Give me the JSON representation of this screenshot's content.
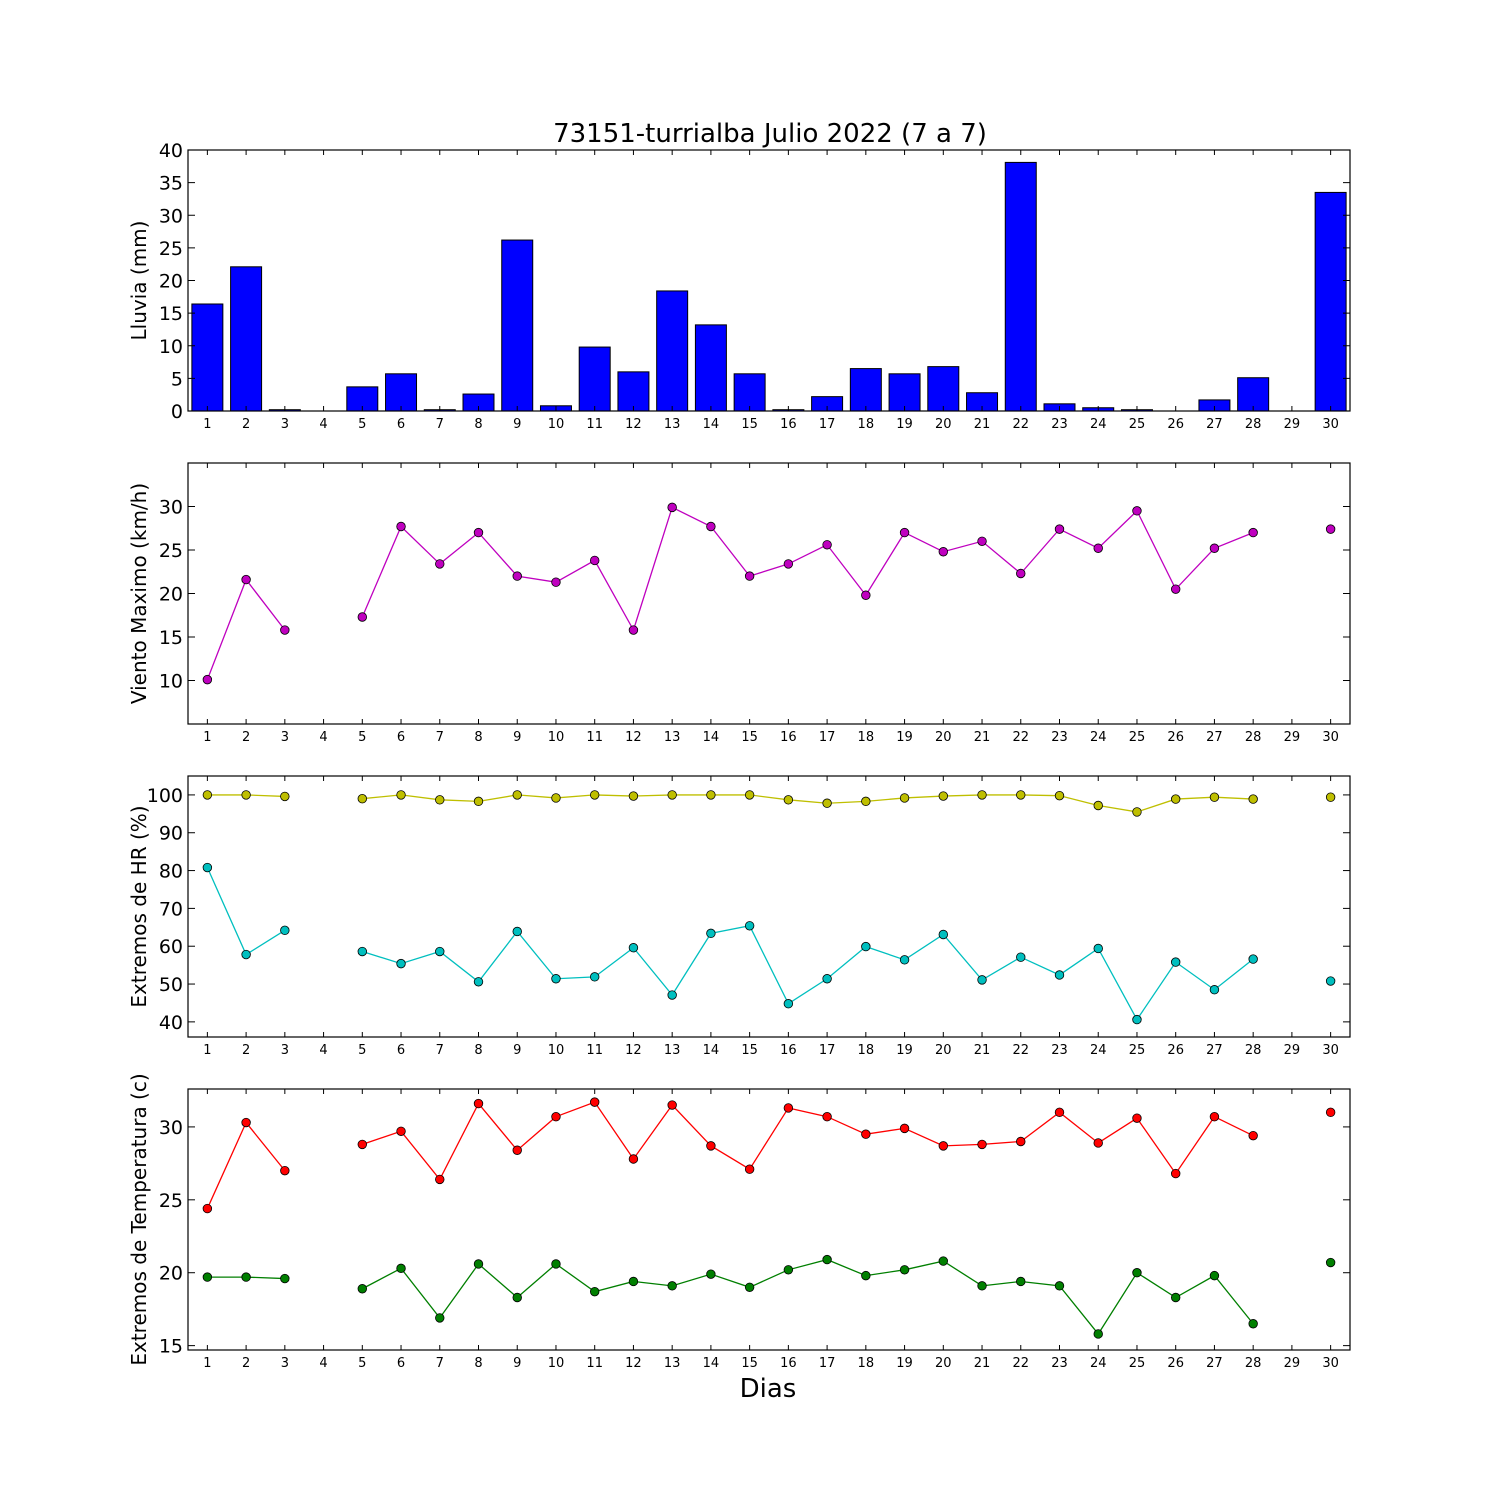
{
  "figure": {
    "title": "73151-turrialba Julio 2022  (7 a 7)",
    "xlabel": "Dias"
  },
  "chart_data": [
    {
      "type": "bar",
      "ylabel": "Lluvia (mm)",
      "ylim": [
        0,
        40
      ],
      "yticks": [
        0,
        5,
        10,
        15,
        20,
        25,
        30,
        35,
        40
      ],
      "xlim": [
        0.5,
        30.5
      ],
      "x": [
        1,
        2,
        3,
        4,
        5,
        6,
        7,
        8,
        9,
        10,
        11,
        12,
        13,
        14,
        15,
        16,
        17,
        18,
        19,
        20,
        21,
        22,
        23,
        24,
        25,
        26,
        27,
        28,
        29,
        30
      ],
      "xticklabels": [
        "1",
        "2",
        "3",
        "4",
        "5",
        "6",
        "7",
        "8",
        "9",
        "10",
        "11",
        "12",
        "13",
        "14",
        "15",
        "16",
        "17",
        "18",
        "19",
        "20",
        "21",
        "22",
        "23",
        "24",
        "25",
        "26",
        "27",
        "28",
        "29",
        "30"
      ],
      "grid": false,
      "series": [
        {
          "color": "#0000ff",
          "values": [
            16.4,
            22.1,
            0.2,
            0,
            3.7,
            5.7,
            0.2,
            2.6,
            26.2,
            0.8,
            9.8,
            6.0,
            18.4,
            13.2,
            5.7,
            0.2,
            2.2,
            6.5,
            5.7,
            6.8,
            2.8,
            38.1,
            1.1,
            0.5,
            0.2,
            0,
            1.7,
            5.1,
            0,
            33.5
          ]
        }
      ]
    },
    {
      "type": "line",
      "ylabel": "Viento Maximo (km/h)",
      "ylim": [
        5,
        35
      ],
      "yticks": [
        10,
        15,
        20,
        25,
        30
      ],
      "xlim": [
        0.5,
        30.5
      ],
      "x": [
        1,
        2,
        3,
        4,
        5,
        6,
        7,
        8,
        9,
        10,
        11,
        12,
        13,
        14,
        15,
        16,
        17,
        18,
        19,
        20,
        21,
        22,
        23,
        24,
        25,
        26,
        27,
        28,
        29,
        30
      ],
      "xticklabels": [
        "1",
        "2",
        "3",
        "4",
        "5",
        "6",
        "7",
        "8",
        "9",
        "10",
        "11",
        "12",
        "13",
        "14",
        "15",
        "16",
        "17",
        "18",
        "19",
        "20",
        "21",
        "22",
        "23",
        "24",
        "25",
        "26",
        "27",
        "28",
        "29",
        "30"
      ],
      "grid": false,
      "series": [
        {
          "color": "#bf00bf",
          "values": [
            10.1,
            21.6,
            15.8,
            null,
            17.3,
            27.7,
            23.4,
            27.0,
            22.0,
            21.3,
            23.8,
            15.8,
            29.9,
            27.7,
            22.0,
            23.4,
            25.6,
            19.8,
            27.0,
            24.8,
            26.0,
            22.3,
            27.4,
            25.2,
            29.5,
            20.5,
            25.2,
            27.0,
            null,
            27.4
          ]
        }
      ]
    },
    {
      "type": "line",
      "ylabel": "Extremos de HR (%)",
      "ylim": [
        36,
        105
      ],
      "yticks": [
        40,
        50,
        60,
        70,
        80,
        90,
        100
      ],
      "xlim": [
        0.5,
        30.5
      ],
      "x": [
        1,
        2,
        3,
        4,
        5,
        6,
        7,
        8,
        9,
        10,
        11,
        12,
        13,
        14,
        15,
        16,
        17,
        18,
        19,
        20,
        21,
        22,
        23,
        24,
        25,
        26,
        27,
        28,
        29,
        30
      ],
      "xticklabels": [
        "1",
        "2",
        "3",
        "4",
        "5",
        "6",
        "7",
        "8",
        "9",
        "10",
        "11",
        "12",
        "13",
        "14",
        "15",
        "16",
        "17",
        "18",
        "19",
        "20",
        "21",
        "22",
        "23",
        "24",
        "25",
        "26",
        "27",
        "28",
        "29",
        "30"
      ],
      "grid": false,
      "series": [
        {
          "color": "#bfbf00",
          "values": [
            100,
            100,
            99.6,
            null,
            99.0,
            100,
            98.7,
            98.3,
            100,
            99.2,
            100,
            99.7,
            100,
            100,
            100,
            98.7,
            97.8,
            98.3,
            99.2,
            99.7,
            100,
            100,
            99.8,
            97.2,
            95.5,
            98.9,
            99.4,
            98.9,
            null,
            99.4
          ]
        },
        {
          "color": "#00bfbf",
          "values": [
            80.8,
            57.8,
            64.2,
            null,
            58.6,
            55.4,
            58.6,
            50.6,
            63.9,
            51.4,
            51.9,
            59.6,
            47.1,
            63.4,
            65.4,
            44.8,
            51.4,
            59.9,
            56.4,
            63.1,
            51.1,
            57.1,
            52.4,
            59.4,
            40.6,
            55.8,
            48.5,
            56.6,
            null,
            50.8
          ]
        }
      ]
    },
    {
      "type": "line",
      "ylabel": "Extremos de Temperatura (c)",
      "ylim": [
        14.7,
        32.6
      ],
      "yticks": [
        15,
        20,
        25,
        30
      ],
      "xlim": [
        0.5,
        30.5
      ],
      "x": [
        1,
        2,
        3,
        4,
        5,
        6,
        7,
        8,
        9,
        10,
        11,
        12,
        13,
        14,
        15,
        16,
        17,
        18,
        19,
        20,
        21,
        22,
        23,
        24,
        25,
        26,
        27,
        28,
        29,
        30
      ],
      "xticklabels": [
        "1",
        "2",
        "3",
        "4",
        "5",
        "6",
        "7",
        "8",
        "9",
        "10",
        "11",
        "12",
        "13",
        "14",
        "15",
        "16",
        "17",
        "18",
        "19",
        "20",
        "21",
        "22",
        "23",
        "24",
        "25",
        "26",
        "27",
        "28",
        "29",
        "30"
      ],
      "grid": false,
      "series": [
        {
          "color": "#ff0000",
          "values": [
            24.4,
            30.3,
            27.0,
            null,
            28.8,
            29.7,
            26.4,
            31.6,
            28.4,
            30.7,
            31.7,
            27.8,
            31.5,
            28.7,
            27.1,
            31.3,
            30.7,
            29.5,
            29.9,
            28.7,
            28.8,
            29.0,
            31.0,
            28.9,
            30.6,
            26.8,
            30.7,
            29.4,
            null,
            31.0
          ]
        },
        {
          "color": "#007f00",
          "values": [
            19.7,
            19.7,
            19.6,
            null,
            18.9,
            20.3,
            16.9,
            20.6,
            18.3,
            20.6,
            18.7,
            19.4,
            19.1,
            19.9,
            19.0,
            20.2,
            20.9,
            19.8,
            20.2,
            20.8,
            19.1,
            19.4,
            19.1,
            15.8,
            20.0,
            18.3,
            19.8,
            16.5,
            null,
            20.7
          ]
        }
      ]
    }
  ]
}
